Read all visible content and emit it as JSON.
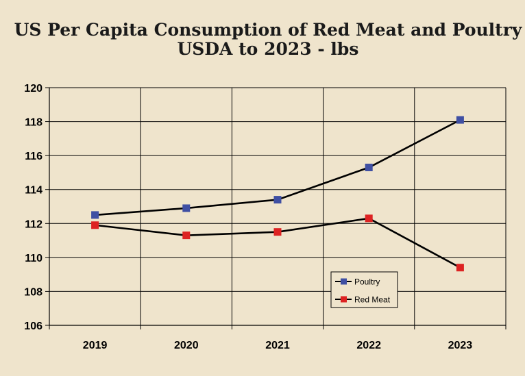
{
  "chart_data": {
    "type": "line",
    "title": "US Per Capita Consumption of Red Meat and Poultry",
    "subtitle": "USDA to 2023 - lbs",
    "xlabel": "",
    "ylabel": "",
    "categories": [
      "2019",
      "2020",
      "2021",
      "2022",
      "2023"
    ],
    "ylim": [
      106,
      120
    ],
    "yticks": [
      106,
      108,
      110,
      112,
      114,
      116,
      118,
      120
    ],
    "grid": true,
    "legend_position": "bottom-right",
    "series": [
      {
        "name": "Poultry",
        "color": "#3f4fa3",
        "values": [
          112.5,
          112.9,
          113.4,
          115.3,
          118.1
        ]
      },
      {
        "name": "Red Meat",
        "color": "#dd2222",
        "values": [
          111.9,
          111.3,
          111.5,
          112.3,
          109.4
        ]
      }
    ]
  }
}
